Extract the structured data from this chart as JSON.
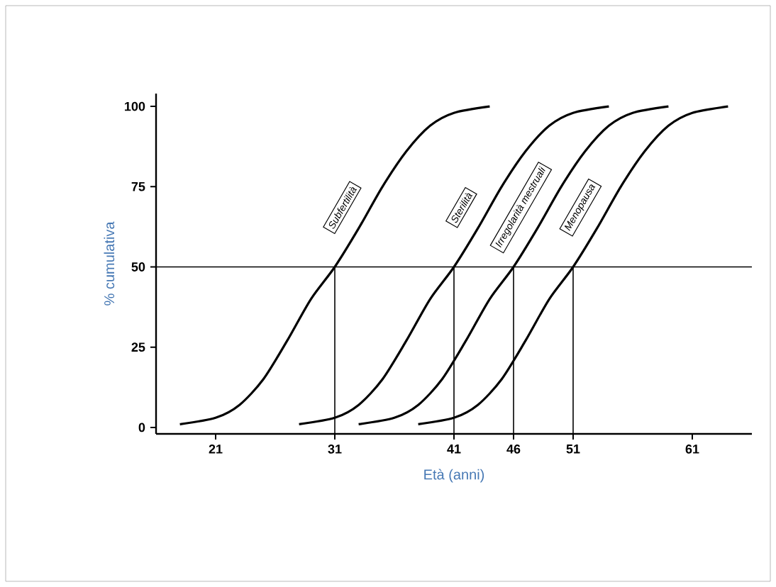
{
  "chart_data": {
    "type": "line",
    "xlabel": "Età (anni)",
    "ylabel": "% cumulativa",
    "xlim": [
      16,
      66
    ],
    "ylim": [
      -2,
      104
    ],
    "xticks": [
      21,
      31,
      41,
      46,
      51,
      61
    ],
    "yticks": [
      0,
      25,
      50,
      75,
      100
    ],
    "legend": false,
    "grid": false,
    "marker": "none",
    "line_style": "solid",
    "series": [
      {
        "name": "Subfertilità",
        "color": "#000000",
        "x": [
          18,
          21,
          23,
          25,
          27,
          29,
          31,
          33,
          35,
          37,
          39,
          41,
          44
        ],
        "values": [
          1,
          3,
          7,
          15,
          27,
          40,
          50,
          62,
          75,
          86,
          94,
          98,
          100
        ]
      },
      {
        "name": "Sterilità",
        "color": "#000000",
        "x": [
          28,
          31,
          33,
          35,
          37,
          39,
          41,
          43,
          45,
          47,
          49,
          51,
          54
        ],
        "values": [
          1,
          3,
          7,
          15,
          27,
          40,
          50,
          62,
          75,
          86,
          94,
          98,
          100
        ]
      },
      {
        "name": "Irregolarità mestruali",
        "color": "#000000",
        "x": [
          33,
          36,
          38,
          40,
          42,
          44,
          46,
          48,
          50,
          52,
          54,
          56,
          59
        ],
        "values": [
          1,
          3,
          7,
          15,
          27,
          40,
          50,
          62,
          75,
          86,
          94,
          98,
          100
        ]
      },
      {
        "name": "Menopausa",
        "color": "#000000",
        "x": [
          38,
          41,
          43,
          45,
          47,
          49,
          51,
          53,
          55,
          57,
          59,
          61,
          64
        ],
        "values": [
          1,
          3,
          7,
          15,
          27,
          40,
          50,
          62,
          75,
          86,
          94,
          98,
          100
        ]
      }
    ],
    "ref_lines": [
      {
        "axis": "y",
        "value": 50,
        "color": "#000000"
      },
      {
        "axis": "x",
        "value": 31,
        "color": "#000000"
      },
      {
        "axis": "x",
        "value": 41,
        "color": "#000000"
      },
      {
        "axis": "x",
        "value": 46,
        "color": "#000000"
      },
      {
        "axis": "x",
        "value": 51,
        "color": "#000000"
      }
    ]
  }
}
